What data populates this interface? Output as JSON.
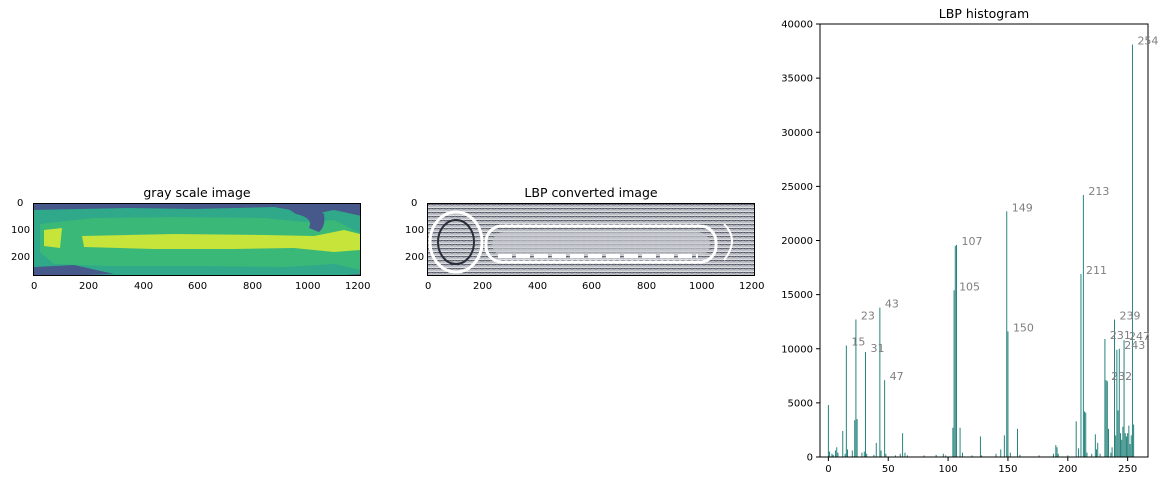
{
  "gray_panel": {
    "title": "gray scale image",
    "xticks": [
      "0",
      "200",
      "400",
      "600",
      "800",
      "1000",
      "1200"
    ],
    "yticks": [
      "0",
      "100",
      "200"
    ],
    "colors": {
      "dark": "#46598a",
      "teal": "#2fa98a",
      "green": "#3ab878",
      "yellow": "#c6e43a"
    }
  },
  "lbp_panel": {
    "title": "LBP converted image",
    "xticks": [
      "0",
      "200",
      "400",
      "600",
      "800",
      "1000",
      "1200"
    ],
    "yticks": [
      "0",
      "100",
      "200"
    ]
  },
  "chart_data": {
    "type": "bar",
    "title": "LBP histogram",
    "xlabel": "",
    "ylabel": "",
    "xlim": [
      -7,
      267
    ],
    "ylim": [
      0,
      40000
    ],
    "xticks": [
      0,
      50,
      100,
      150,
      200,
      250
    ],
    "yticks": [
      0,
      5000,
      10000,
      15000,
      20000,
      25000,
      30000,
      35000,
      40000
    ],
    "bar_color": "#1f7f78",
    "bars": [
      {
        "x": 0,
        "y": 4800
      },
      {
        "x": 1,
        "y": 500
      },
      {
        "x": 3,
        "y": 300
      },
      {
        "x": 4,
        "y": 200
      },
      {
        "x": 6,
        "y": 600
      },
      {
        "x": 7,
        "y": 900
      },
      {
        "x": 8,
        "y": 400
      },
      {
        "x": 12,
        "y": 2400
      },
      {
        "x": 14,
        "y": 300
      },
      {
        "x": 15,
        "y": 10300
      },
      {
        "x": 16,
        "y": 700
      },
      {
        "x": 20,
        "y": 600
      },
      {
        "x": 22,
        "y": 3400
      },
      {
        "x": 23,
        "y": 12700
      },
      {
        "x": 24,
        "y": 3500
      },
      {
        "x": 28,
        "y": 400
      },
      {
        "x": 30,
        "y": 500
      },
      {
        "x": 31,
        "y": 9700
      },
      {
        "x": 32,
        "y": 300
      },
      {
        "x": 38,
        "y": 200
      },
      {
        "x": 40,
        "y": 1300
      },
      {
        "x": 43,
        "y": 13800
      },
      {
        "x": 44,
        "y": 600
      },
      {
        "x": 47,
        "y": 7100
      },
      {
        "x": 48,
        "y": 300
      },
      {
        "x": 56,
        "y": 150
      },
      {
        "x": 60,
        "y": 300
      },
      {
        "x": 62,
        "y": 2200
      },
      {
        "x": 64,
        "y": 400
      },
      {
        "x": 66,
        "y": 150
      },
      {
        "x": 80,
        "y": 150
      },
      {
        "x": 90,
        "y": 200
      },
      {
        "x": 96,
        "y": 300
      },
      {
        "x": 98,
        "y": 150
      },
      {
        "x": 104,
        "y": 2700
      },
      {
        "x": 105,
        "y": 15400
      },
      {
        "x": 106,
        "y": 19500
      },
      {
        "x": 107,
        "y": 19600
      },
      {
        "x": 110,
        "y": 2700
      },
      {
        "x": 112,
        "y": 400
      },
      {
        "x": 120,
        "y": 150
      },
      {
        "x": 127,
        "y": 1900
      },
      {
        "x": 128,
        "y": 150
      },
      {
        "x": 140,
        "y": 300
      },
      {
        "x": 144,
        "y": 700
      },
      {
        "x": 147,
        "y": 2000
      },
      {
        "x": 149,
        "y": 22700
      },
      {
        "x": 150,
        "y": 11600
      },
      {
        "x": 152,
        "y": 400
      },
      {
        "x": 158,
        "y": 2600
      },
      {
        "x": 160,
        "y": 200
      },
      {
        "x": 176,
        "y": 150
      },
      {
        "x": 188,
        "y": 300
      },
      {
        "x": 190,
        "y": 1100
      },
      {
        "x": 191,
        "y": 900
      },
      {
        "x": 192,
        "y": 300
      },
      {
        "x": 200,
        "y": 150
      },
      {
        "x": 207,
        "y": 3300
      },
      {
        "x": 209,
        "y": 800
      },
      {
        "x": 211,
        "y": 16900
      },
      {
        "x": 213,
        "y": 24200
      },
      {
        "x": 214,
        "y": 4200
      },
      {
        "x": 215,
        "y": 4100
      },
      {
        "x": 216,
        "y": 400
      },
      {
        "x": 220,
        "y": 300
      },
      {
        "x": 223,
        "y": 2100
      },
      {
        "x": 224,
        "y": 700
      },
      {
        "x": 225,
        "y": 1300
      },
      {
        "x": 227,
        "y": 300
      },
      {
        "x": 231,
        "y": 10900
      },
      {
        "x": 232,
        "y": 7100
      },
      {
        "x": 233,
        "y": 7000
      },
      {
        "x": 234,
        "y": 2600
      },
      {
        "x": 236,
        "y": 400
      },
      {
        "x": 237,
        "y": 900
      },
      {
        "x": 239,
        "y": 12700
      },
      {
        "x": 240,
        "y": 2000
      },
      {
        "x": 241,
        "y": 9900
      },
      {
        "x": 242,
        "y": 4300
      },
      {
        "x": 243,
        "y": 10000
      },
      {
        "x": 244,
        "y": 2200
      },
      {
        "x": 245,
        "y": 1600
      },
      {
        "x": 246,
        "y": 2800
      },
      {
        "x": 247,
        "y": 10800
      },
      {
        "x": 248,
        "y": 2200
      },
      {
        "x": 249,
        "y": 1900
      },
      {
        "x": 250,
        "y": 2200
      },
      {
        "x": 251,
        "y": 2900
      },
      {
        "x": 252,
        "y": 1200
      },
      {
        "x": 253,
        "y": 2000
      },
      {
        "x": 254,
        "y": 38100
      },
      {
        "x": 255,
        "y": 3000
      }
    ],
    "annotations": [
      {
        "text": "15",
        "x": 15,
        "y": 10300
      },
      {
        "text": "23",
        "x": 23,
        "y": 12700
      },
      {
        "text": "31",
        "x": 31,
        "y": 9700
      },
      {
        "text": "43",
        "x": 43,
        "y": 13800
      },
      {
        "text": "47",
        "x": 47,
        "y": 7100
      },
      {
        "text": "105",
        "x": 105,
        "y": 15400
      },
      {
        "text": "107",
        "x": 107,
        "y": 19600
      },
      {
        "text": "149",
        "x": 149,
        "y": 22700
      },
      {
        "text": "150",
        "x": 150,
        "y": 11600
      },
      {
        "text": "211",
        "x": 211,
        "y": 16900
      },
      {
        "text": "213",
        "x": 213,
        "y": 24200
      },
      {
        "text": "231",
        "x": 231,
        "y": 10900
      },
      {
        "text": "232",
        "x": 232,
        "y": 7100
      },
      {
        "text": "239",
        "x": 239,
        "y": 12700
      },
      {
        "text": "243",
        "x": 243,
        "y": 10000
      },
      {
        "text": "247",
        "x": 247,
        "y": 10800
      },
      {
        "text": "254",
        "x": 254,
        "y": 38100
      }
    ]
  }
}
